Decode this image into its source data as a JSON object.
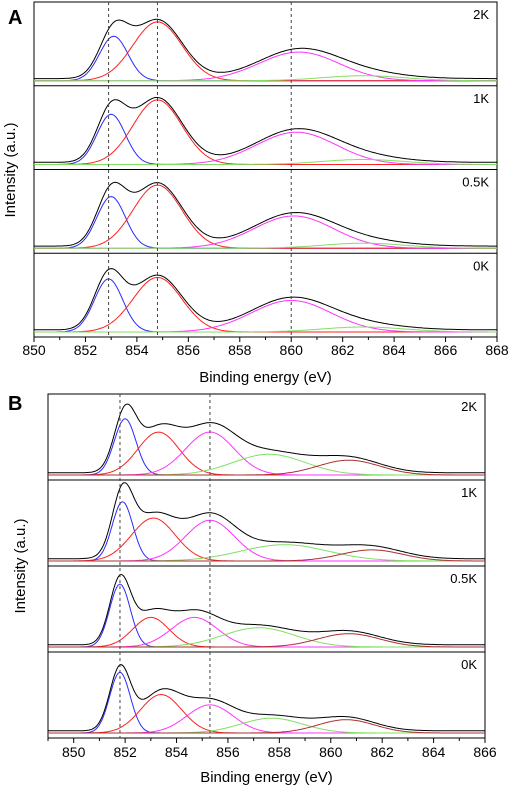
{
  "chart_data": [
    {
      "panel": "A",
      "type": "line",
      "xlabel": "Binding energy (eV)",
      "ylabel": "Intensity (a.u.)",
      "xlim": [
        850,
        868
      ],
      "xticks": [
        "850",
        "852",
        "854",
        "856",
        "858",
        "860",
        "862",
        "864",
        "866",
        "868"
      ],
      "guides_x": [
        852.9,
        854.8,
        860.0
      ],
      "colors": {
        "total": "#000000",
        "c1": "#2a2aff",
        "c2": "#ff2020",
        "c3": "#ff33ff",
        "c4": "#80e060",
        "c5": "#aa3030"
      },
      "stack": [
        {
          "label": "2K",
          "components": [
            {
              "series": "c1",
              "center": 853.1,
              "amp": 0.62,
              "sigma": 0.55
            },
            {
              "series": "c2",
              "center": 854.8,
              "amp": 0.82,
              "sigma": 0.95
            },
            {
              "series": "c3",
              "center": 860.3,
              "amp": 0.4,
              "sigma": 1.55
            },
            {
              "series": "c4",
              "center": 862.8,
              "amp": 0.07,
              "sigma": 1.6
            }
          ]
        },
        {
          "label": "1K",
          "components": [
            {
              "series": "c1",
              "center": 853.0,
              "amp": 0.7,
              "sigma": 0.55
            },
            {
              "series": "c2",
              "center": 854.8,
              "amp": 0.9,
              "sigma": 0.95
            },
            {
              "series": "c3",
              "center": 860.2,
              "amp": 0.45,
              "sigma": 1.55
            },
            {
              "series": "c4",
              "center": 862.8,
              "amp": 0.07,
              "sigma": 1.6
            }
          ]
        },
        {
          "label": "0.5K",
          "components": [
            {
              "series": "c1",
              "center": 853.0,
              "amp": 0.72,
              "sigma": 0.55
            },
            {
              "series": "c2",
              "center": 854.8,
              "amp": 0.88,
              "sigma": 0.95
            },
            {
              "series": "c3",
              "center": 860.1,
              "amp": 0.45,
              "sigma": 1.55
            },
            {
              "series": "c4",
              "center": 862.8,
              "amp": 0.07,
              "sigma": 1.6
            }
          ]
        },
        {
          "label": "0K",
          "components": [
            {
              "series": "c1",
              "center": 852.9,
              "amp": 0.74,
              "sigma": 0.55
            },
            {
              "series": "c2",
              "center": 854.8,
              "amp": 0.76,
              "sigma": 0.95
            },
            {
              "series": "c3",
              "center": 860.0,
              "amp": 0.44,
              "sigma": 1.55
            },
            {
              "series": "c4",
              "center": 862.8,
              "amp": 0.07,
              "sigma": 1.6
            }
          ]
        }
      ]
    },
    {
      "panel": "B",
      "type": "line",
      "xlabel": "Binding energy (eV)",
      "ylabel": "Intensity (a.u.)",
      "xlim": [
        849,
        866
      ],
      "xticks": [
        "850",
        "852",
        "854",
        "856",
        "858",
        "860",
        "862",
        "864",
        "866"
      ],
      "guides_x": [
        851.8,
        855.3
      ],
      "colors": {
        "total": "#000000",
        "c1": "#2a2aff",
        "c2": "#ff2020",
        "c3": "#ff33ff",
        "c4": "#80e060",
        "c5": "#aa3030"
      },
      "stack": [
        {
          "label": "2K",
          "components": [
            {
              "series": "c1",
              "center": 852.0,
              "amp": 0.76,
              "sigma": 0.42
            },
            {
              "series": "c2",
              "center": 853.3,
              "amp": 0.58,
              "sigma": 0.8
            },
            {
              "series": "c3",
              "center": 855.3,
              "amp": 0.58,
              "sigma": 0.95
            },
            {
              "series": "c4",
              "center": 857.6,
              "amp": 0.28,
              "sigma": 1.4
            },
            {
              "series": "c5",
              "center": 860.7,
              "amp": 0.2,
              "sigma": 1.2
            }
          ]
        },
        {
          "label": "1K",
          "components": [
            {
              "series": "c1",
              "center": 851.9,
              "amp": 0.8,
              "sigma": 0.4
            },
            {
              "series": "c2",
              "center": 853.1,
              "amp": 0.58,
              "sigma": 0.85
            },
            {
              "series": "c3",
              "center": 855.3,
              "amp": 0.55,
              "sigma": 0.95
            },
            {
              "series": "c4",
              "center": 858.2,
              "amp": 0.22,
              "sigma": 1.7
            },
            {
              "series": "c5",
              "center": 861.6,
              "amp": 0.15,
              "sigma": 1.2
            }
          ]
        },
        {
          "label": "0.5K",
          "components": [
            {
              "series": "c1",
              "center": 851.8,
              "amp": 0.85,
              "sigma": 0.4
            },
            {
              "series": "c2",
              "center": 853.0,
              "amp": 0.4,
              "sigma": 0.7
            },
            {
              "series": "c3",
              "center": 854.7,
              "amp": 0.4,
              "sigma": 0.9
            },
            {
              "series": "c4",
              "center": 857.2,
              "amp": 0.26,
              "sigma": 1.4
            },
            {
              "series": "c5",
              "center": 860.7,
              "amp": 0.18,
              "sigma": 1.2
            }
          ]
        },
        {
          "label": "0K",
          "components": [
            {
              "series": "c1",
              "center": 851.8,
              "amp": 0.82,
              "sigma": 0.4
            },
            {
              "series": "c2",
              "center": 853.4,
              "amp": 0.52,
              "sigma": 0.8
            },
            {
              "series": "c3",
              "center": 855.3,
              "amp": 0.38,
              "sigma": 0.9
            },
            {
              "series": "c4",
              "center": 857.7,
              "amp": 0.2,
              "sigma": 1.2
            },
            {
              "series": "c5",
              "center": 860.6,
              "amp": 0.18,
              "sigma": 1.1
            }
          ]
        }
      ]
    }
  ]
}
